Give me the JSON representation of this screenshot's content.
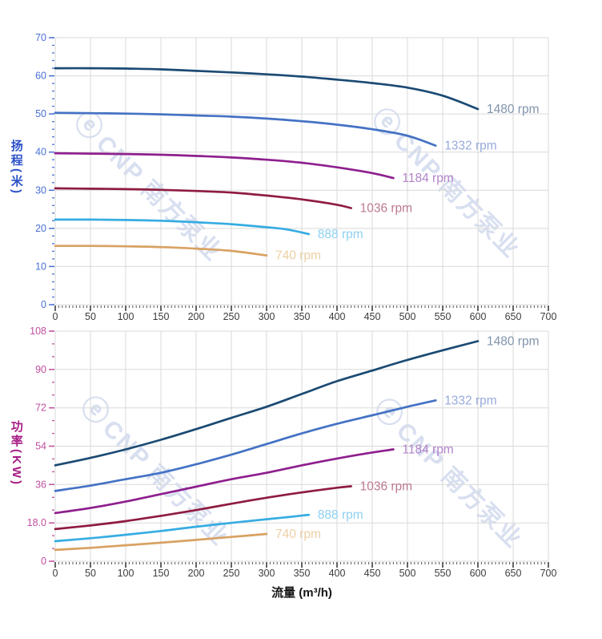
{
  "page": {
    "background": "#ffffff"
  },
  "watermark": {
    "logo_glyph": "ⓔ",
    "text": "CNP 南方泵业",
    "color": "rgba(168,185,221,0.45)"
  },
  "chart_data": [
    {
      "type": "line",
      "title": "",
      "ylabel": "扬程(米)",
      "xlabel": "",
      "xlim": [
        0,
        700
      ],
      "ylim": [
        0,
        70
      ],
      "x_tick_labels": [
        "0",
        "50",
        "100",
        "150",
        "200",
        "250",
        "300",
        "350",
        "400",
        "450",
        "500",
        "550",
        "600",
        "650",
        "700"
      ],
      "y_tick_labels": [
        "0",
        "10",
        "20",
        "30",
        "40",
        "50",
        "60",
        "70"
      ],
      "x_minor_step": 5,
      "y_minor_step": 2,
      "grid": true,
      "legend_position": "end-of-line-labels",
      "axis_text_color": "#4a70d4",
      "axis_title_color": "#2b51c8",
      "x_axis_text_color": "#3c3c3c",
      "grid_color": "#d9d9d9",
      "series": [
        {
          "name": "1480 rpm",
          "color": "#1b4a73",
          "label_color": "#8294ac",
          "points": [
            [
              0,
              62
            ],
            [
              50,
              62
            ],
            [
              100,
              61.9
            ],
            [
              150,
              61.7
            ],
            [
              200,
              61.3
            ],
            [
              250,
              60.9
            ],
            [
              300,
              60.4
            ],
            [
              350,
              59.8
            ],
            [
              400,
              59
            ],
            [
              450,
              58.1
            ],
            [
              500,
              56.9
            ],
            [
              550,
              54.8
            ],
            [
              600,
              51.3
            ]
          ]
        },
        {
          "name": "1332 rpm",
          "color": "#4472c4",
          "label_color": "#97aadb",
          "points": [
            [
              0,
              50.3
            ],
            [
              50,
              50.2
            ],
            [
              100,
              50.1
            ],
            [
              150,
              49.9
            ],
            [
              200,
              49.6
            ],
            [
              250,
              49.3
            ],
            [
              300,
              48.8
            ],
            [
              350,
              48.1
            ],
            [
              400,
              47.2
            ],
            [
              450,
              46
            ],
            [
              500,
              44.3
            ],
            [
              540,
              41.7
            ]
          ]
        },
        {
          "name": "1184 rpm",
          "color": "#8e1f8e",
          "label_color": "#b283c9",
          "points": [
            [
              0,
              39.7
            ],
            [
              50,
              39.6
            ],
            [
              100,
              39.5
            ],
            [
              150,
              39.3
            ],
            [
              200,
              39
            ],
            [
              250,
              38.6
            ],
            [
              300,
              38
            ],
            [
              350,
              37.2
            ],
            [
              400,
              36
            ],
            [
              450,
              34.5
            ],
            [
              480,
              33.2
            ]
          ]
        },
        {
          "name": "1036 rpm",
          "color": "#8f1c40",
          "label_color": "#bd7990",
          "points": [
            [
              0,
              30.5
            ],
            [
              50,
              30.4
            ],
            [
              100,
              30.3
            ],
            [
              150,
              30.1
            ],
            [
              200,
              29.8
            ],
            [
              250,
              29.4
            ],
            [
              300,
              28.6
            ],
            [
              350,
              27.6
            ],
            [
              400,
              26.2
            ],
            [
              420,
              25.3
            ]
          ]
        },
        {
          "name": "888 rpm",
          "color": "#36ace2",
          "label_color": "#8fd0f2",
          "points": [
            [
              0,
              22.3
            ],
            [
              50,
              22.3
            ],
            [
              100,
              22.2
            ],
            [
              150,
              22
            ],
            [
              200,
              21.6
            ],
            [
              250,
              21.1
            ],
            [
              300,
              20.3
            ],
            [
              330,
              19.7
            ],
            [
              360,
              18.5
            ]
          ]
        },
        {
          "name": "740 rpm",
          "color": "#d8a263",
          "label_color": "#eccfa4",
          "points": [
            [
              0,
              15.4
            ],
            [
              50,
              15.4
            ],
            [
              100,
              15.3
            ],
            [
              150,
              15.1
            ],
            [
              200,
              14.7
            ],
            [
              250,
              14.1
            ],
            [
              300,
              12.9
            ]
          ]
        }
      ]
    },
    {
      "type": "line",
      "title": "",
      "ylabel": "功率(KW)",
      "xlabel": "流量 (m³/h)",
      "xlim": [
        0,
        700
      ],
      "ylim": [
        0,
        108
      ],
      "x_tick_labels": [
        "0",
        "50",
        "100",
        "150",
        "200",
        "250",
        "300",
        "350",
        "400",
        "450",
        "500",
        "550",
        "600",
        "650",
        "700"
      ],
      "y_tick_labels": [
        "0",
        "18.0",
        "36",
        "54",
        "72",
        "90",
        "108"
      ],
      "x_minor_step": 5,
      "y_minor_step": 6,
      "grid": true,
      "legend_position": "end-of-line-labels",
      "axis_text_color": "#c0509f",
      "axis_title_color": "#a81d85",
      "x_axis_text_color": "#3c3c3c",
      "grid_color": "#d9d9d9",
      "series": [
        {
          "name": "1480 rpm",
          "color": "#1b4a73",
          "label_color": "#8294ac",
          "points": [
            [
              0,
              45
            ],
            [
              50,
              48.5
            ],
            [
              100,
              52.5
            ],
            [
              150,
              57
            ],
            [
              200,
              62
            ],
            [
              250,
              67.3
            ],
            [
              300,
              72.5
            ],
            [
              350,
              78.5
            ],
            [
              400,
              84.5
            ],
            [
              450,
              89.5
            ],
            [
              500,
              94.5
            ],
            [
              550,
              99
            ],
            [
              600,
              103.3
            ]
          ]
        },
        {
          "name": "1332 rpm",
          "color": "#4472c4",
          "label_color": "#97aadb",
          "points": [
            [
              0,
              33
            ],
            [
              50,
              35.5
            ],
            [
              100,
              38.5
            ],
            [
              150,
              41.5
            ],
            [
              200,
              45.5
            ],
            [
              250,
              50
            ],
            [
              300,
              55
            ],
            [
              350,
              60
            ],
            [
              400,
              64.5
            ],
            [
              450,
              68.5
            ],
            [
              500,
              72.5
            ],
            [
              540,
              75.5
            ]
          ]
        },
        {
          "name": "1184 rpm",
          "color": "#8e1f8e",
          "label_color": "#b283c9",
          "points": [
            [
              0,
              22.6
            ],
            [
              50,
              25
            ],
            [
              100,
              28
            ],
            [
              150,
              31.5
            ],
            [
              200,
              35
            ],
            [
              250,
              38.5
            ],
            [
              300,
              41.5
            ],
            [
              350,
              45
            ],
            [
              400,
              48.2
            ],
            [
              440,
              50.5
            ],
            [
              480,
              52.5
            ]
          ]
        },
        {
          "name": "1036 rpm",
          "color": "#8f1c40",
          "label_color": "#bd7990",
          "points": [
            [
              0,
              15.1
            ],
            [
              50,
              16.8
            ],
            [
              100,
              18.8
            ],
            [
              150,
              21.3
            ],
            [
              200,
              24
            ],
            [
              250,
              27
            ],
            [
              300,
              29.8
            ],
            [
              350,
              32.3
            ],
            [
              400,
              34.5
            ],
            [
              420,
              35.2
            ]
          ]
        },
        {
          "name": "888 rpm",
          "color": "#36ace2",
          "label_color": "#8fd0f2",
          "points": [
            [
              0,
              9.4
            ],
            [
              50,
              10.8
            ],
            [
              100,
              12.4
            ],
            [
              150,
              14.2
            ],
            [
              200,
              16.2
            ],
            [
              250,
              18
            ],
            [
              300,
              19.7
            ],
            [
              330,
              20.7
            ],
            [
              360,
              21.8
            ]
          ]
        },
        {
          "name": "740 rpm",
          "color": "#d8a263",
          "label_color": "#eccfa4",
          "points": [
            [
              0,
              5.3
            ],
            [
              50,
              6.3
            ],
            [
              100,
              7.5
            ],
            [
              150,
              8.7
            ],
            [
              200,
              10
            ],
            [
              250,
              11.4
            ],
            [
              300,
              12.8
            ]
          ]
        }
      ]
    }
  ]
}
